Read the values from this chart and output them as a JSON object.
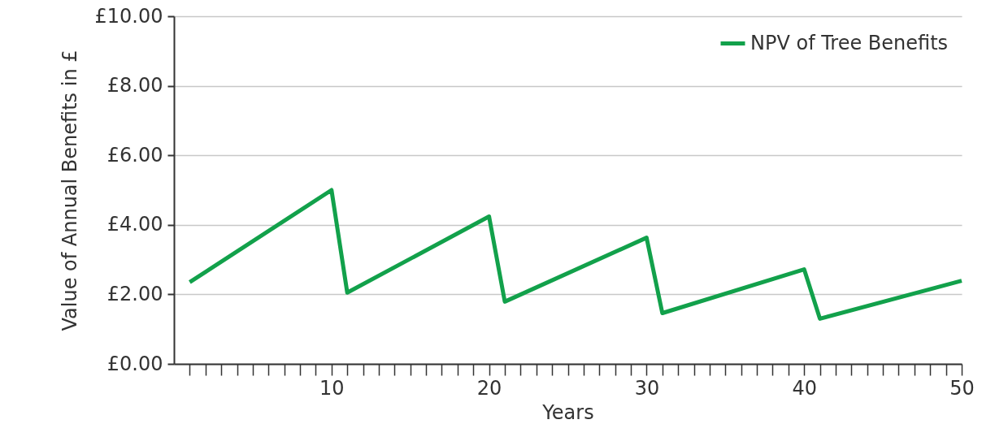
{
  "chart_data": {
    "type": "line",
    "xlabel": "Years",
    "ylabel": "Value of Annual Benefits in £",
    "x": [
      1,
      10,
      11,
      20,
      21,
      30,
      31,
      40,
      41,
      50
    ],
    "series": [
      {
        "name": "NPV of Tree Benefits",
        "color": "#12a14b",
        "values": [
          2.35,
          5.0,
          2.05,
          4.24,
          1.79,
          3.63,
          1.46,
          2.72,
          1.3,
          2.39
        ]
      }
    ],
    "xlim": [
      0,
      50
    ],
    "xticks": [
      {
        "value": 1,
        "label": null
      },
      {
        "value": 2,
        "label": null
      },
      {
        "value": 3,
        "label": null
      },
      {
        "value": 4,
        "label": null
      },
      {
        "value": 5,
        "label": null
      },
      {
        "value": 6,
        "label": null
      },
      {
        "value": 7,
        "label": null
      },
      {
        "value": 8,
        "label": null
      },
      {
        "value": 9,
        "label": null
      },
      10,
      {
        "value": 11,
        "label": null
      },
      {
        "value": 12,
        "label": null
      },
      {
        "value": 13,
        "label": null
      },
      {
        "value": 14,
        "label": null
      },
      {
        "value": 15,
        "label": null
      },
      {
        "value": 16,
        "label": null
      },
      {
        "value": 17,
        "label": null
      },
      {
        "value": 18,
        "label": null
      },
      {
        "value": 19,
        "label": null
      },
      20,
      {
        "value": 21,
        "label": null
      },
      {
        "value": 22,
        "label": null
      },
      {
        "value": 23,
        "label": null
      },
      {
        "value": 24,
        "label": null
      },
      {
        "value": 25,
        "label": null
      },
      {
        "value": 26,
        "label": null
      },
      {
        "value": 27,
        "label": null
      },
      {
        "value": 28,
        "label": null
      },
      {
        "value": 29,
        "label": null
      },
      30,
      {
        "value": 31,
        "label": null
      },
      {
        "value": 32,
        "label": null
      },
      {
        "value": 33,
        "label": null
      },
      {
        "value": 34,
        "label": null
      },
      {
        "value": 35,
        "label": null
      },
      {
        "value": 36,
        "label": null
      },
      {
        "value": 37,
        "label": null
      },
      {
        "value": 38,
        "label": null
      },
      {
        "value": 39,
        "label": null
      },
      40,
      {
        "value": 41,
        "label": null
      },
      {
        "value": 42,
        "label": null
      },
      {
        "value": 43,
        "label": null
      },
      {
        "value": 44,
        "label": null
      },
      {
        "value": 45,
        "label": null
      },
      {
        "value": 46,
        "label": null
      },
      {
        "value": 47,
        "label": null
      },
      {
        "value": 48,
        "label": null
      },
      {
        "value": 49,
        "label": null
      },
      50
    ],
    "ylim": [
      0,
      10
    ],
    "yticks": [
      {
        "value": 0,
        "label": "£0.00"
      },
      {
        "value": 2,
        "label": "£2.00"
      },
      {
        "value": 4,
        "label": "£4.00"
      },
      {
        "value": 6,
        "label": "£6.00"
      },
      {
        "value": 8,
        "label": "£8.00"
      },
      {
        "value": 10,
        "label": "£10.00"
      }
    ],
    "grid": "y",
    "legend": "top right"
  }
}
